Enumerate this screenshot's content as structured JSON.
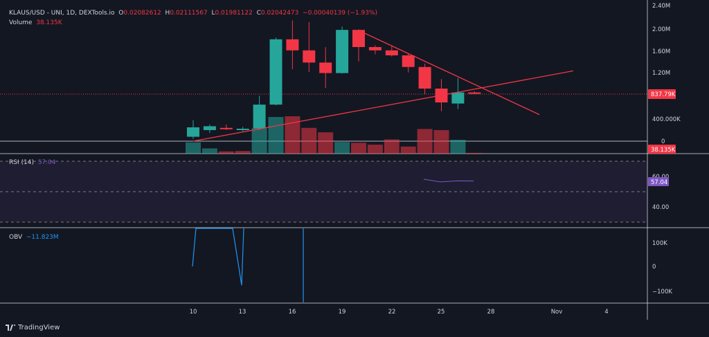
{
  "header": {
    "symbol": "KLAUS/USD - UNI, 1D, DEXTools.io",
    "open_label": "O",
    "open": "0.02082612",
    "high_label": "H",
    "high": "0.02111567",
    "low_label": "L",
    "low": "0.01981122",
    "close_label": "C",
    "close": "0.02042473",
    "change": "−0.00040139 (−1.93%)",
    "volume_label": "Volume",
    "volume": "38.135K"
  },
  "rsi": {
    "label": "RSI (14)",
    "value": "57.04",
    "axis_ticks": [
      "60.00",
      "40.00"
    ],
    "badge": "57.04"
  },
  "obv": {
    "label": "OBV",
    "value": "−11.823M",
    "axis_ticks": [
      "100K",
      "0",
      "−100K"
    ]
  },
  "price_axis": {
    "ticks": [
      "2.40M",
      "2.00M",
      "1.60M",
      "1.20M",
      "400.000K",
      "0"
    ],
    "badge_price": "837.79K",
    "badge_volume": "38.135K"
  },
  "time_axis": {
    "ticks": [
      "10",
      "13",
      "16",
      "19",
      "22",
      "25",
      "28",
      "Nov",
      "4"
    ]
  },
  "footer": {
    "brand": "TradingView"
  },
  "colors": {
    "background": "#131722",
    "up": "#26a69a",
    "down": "#f23645",
    "rsi": "#7e57c2",
    "obv": "#2196f3",
    "trend": "#f23645"
  },
  "chart_data": {
    "type": "candlestick",
    "candles": [
      {
        "date": "10",
        "o": 80,
        "h": 380,
        "l": 40,
        "c": 250
      },
      {
        "date": "11",
        "o": 200,
        "h": 300,
        "l": 150,
        "c": 270
      },
      {
        "date": "12",
        "o": 240,
        "h": 300,
        "l": 200,
        "c": 230
      },
      {
        "date": "13",
        "o": 220,
        "h": 260,
        "l": 180,
        "c": 225
      },
      {
        "date": "14",
        "o": 230,
        "h": 820,
        "l": 200,
        "c": 660
      },
      {
        "date": "15",
        "o": 660,
        "h": 1870,
        "l": 650,
        "c": 1840
      },
      {
        "date": "16",
        "o": 1840,
        "h": 2180,
        "l": 1300,
        "c": 1640
      },
      {
        "date": "17",
        "o": 1640,
        "h": 2150,
        "l": 1250,
        "c": 1420
      },
      {
        "date": "18",
        "o": 1420,
        "h": 1700,
        "l": 960,
        "c": 1230
      },
      {
        "date": "19",
        "o": 1230,
        "h": 2070,
        "l": 1220,
        "c": 2010
      },
      {
        "date": "20",
        "o": 2010,
        "h": 2020,
        "l": 1440,
        "c": 1700
      },
      {
        "date": "21",
        "o": 1700,
        "h": 1730,
        "l": 1570,
        "c": 1640
      },
      {
        "date": "22",
        "o": 1640,
        "h": 1720,
        "l": 1530,
        "c": 1550
      },
      {
        "date": "23",
        "o": 1550,
        "h": 1580,
        "l": 1240,
        "c": 1340
      },
      {
        "date": "24",
        "o": 1340,
        "h": 1400,
        "l": 850,
        "c": 950
      },
      {
        "date": "25",
        "o": 950,
        "h": 1120,
        "l": 540,
        "c": 700
      },
      {
        "date": "26",
        "o": 680,
        "h": 1140,
        "l": 580,
        "c": 880
      },
      {
        "date": "27",
        "o": 880,
        "h": 900,
        "l": 850,
        "c": 860
      }
    ],
    "volume": [
      {
        "date": "10",
        "v": 0.3,
        "up": true
      },
      {
        "date": "11",
        "v": 0.14,
        "up": true
      },
      {
        "date": "12",
        "v": 0.06,
        "up": false
      },
      {
        "date": "13",
        "v": 0.07,
        "up": false
      },
      {
        "date": "14",
        "v": 0.68,
        "up": true
      },
      {
        "date": "15",
        "v": 0.98,
        "up": true
      },
      {
        "date": "16",
        "v": 1.0,
        "up": false
      },
      {
        "date": "17",
        "v": 0.69,
        "up": false
      },
      {
        "date": "18",
        "v": 0.57,
        "up": false
      },
      {
        "date": "19",
        "v": 0.31,
        "up": true
      },
      {
        "date": "20",
        "v": 0.29,
        "up": false
      },
      {
        "date": "21",
        "v": 0.24,
        "up": false
      },
      {
        "date": "22",
        "v": 0.38,
        "up": false
      },
      {
        "date": "23",
        "v": 0.19,
        "up": false
      },
      {
        "date": "24",
        "v": 0.66,
        "up": false
      },
      {
        "date": "25",
        "v": 0.63,
        "up": false
      },
      {
        "date": "26",
        "v": 0.37,
        "up": true
      },
      {
        "date": "27",
        "v": 0.02,
        "up": false
      }
    ],
    "rsi_line": [
      {
        "date": "24",
        "v": 58.2
      },
      {
        "date": "25",
        "v": 56.4
      },
      {
        "date": "26",
        "v": 57.1
      },
      {
        "date": "27",
        "v": 57.04
      }
    ],
    "obv_line": [
      {
        "date": "10",
        "v": 0
      },
      {
        "date": "10",
        "v": 210
      },
      {
        "date": "13",
        "v": 210
      },
      {
        "date": "13",
        "v": -80
      },
      {
        "date": "13",
        "v": 210
      }
    ],
    "trendlines": [
      {
        "from": {
          "date": "10",
          "v": 0
        },
        "to": {
          "date": "Nov",
          "v": 1270
        }
      },
      {
        "from": {
          "date": "20",
          "v": 2000
        },
        "to": {
          "date": "30",
          "v": 480
        }
      }
    ]
  }
}
